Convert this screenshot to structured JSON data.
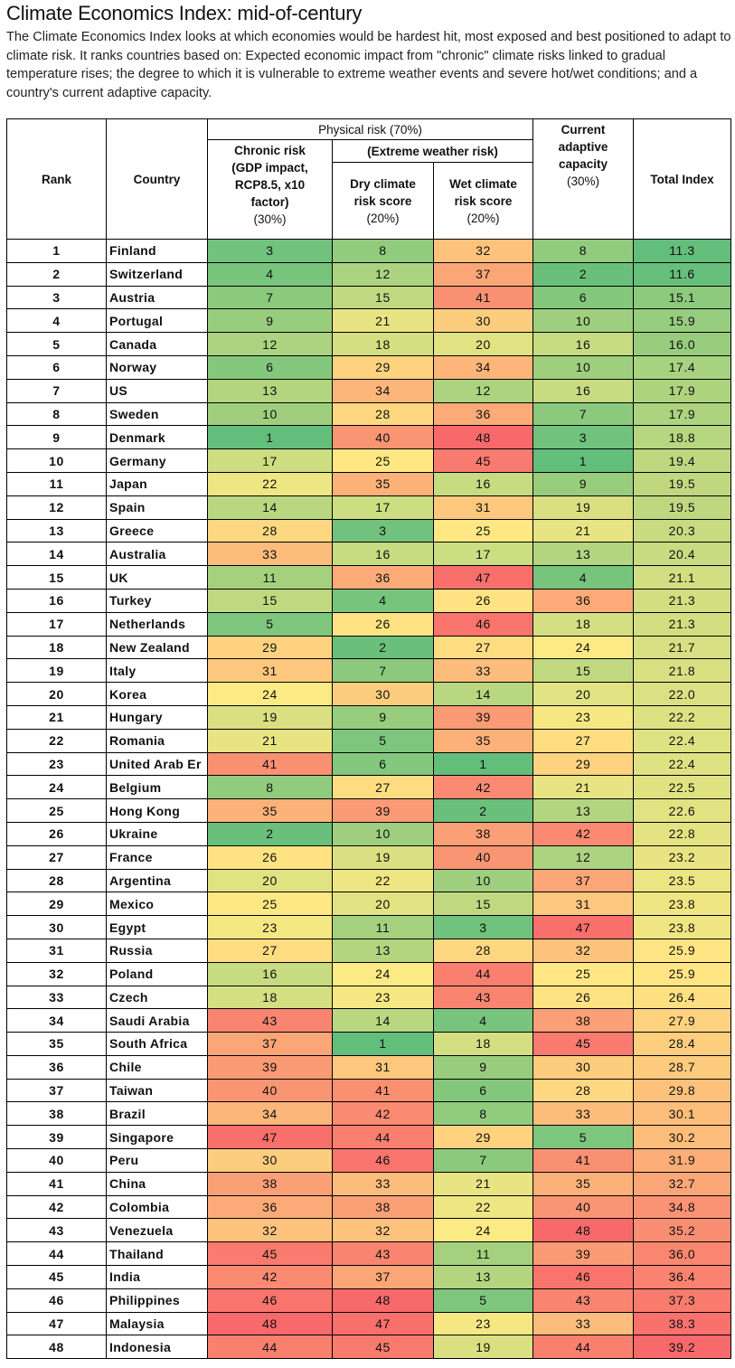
{
  "title": "Climate Economics Index: mid-of-century",
  "description": "The Climate Economics Index looks at which economies would be hardest hit, most exposed and best positioned to adapt to climate risk. It ranks countries based on: Expected economic impact from \"chronic\" climate risks linked to gradual temperature rises; the degree to which it is vulnerable to extreme weather events and severe hot/wet conditions; and a country's current adaptive capacity.",
  "headers": {
    "rank": "Rank",
    "country": "Country",
    "physical_risk": "Physical risk (70%)",
    "extreme_weather": "(Extreme weather risk)",
    "chronic_title": "Chronic risk",
    "chronic_detail": "(GDP impact, RCP8.5, x10 factor)",
    "chronic_pct": "(30%)",
    "dry_title": "Dry climate risk score",
    "dry_pct": "(20%)",
    "wet_title": "Wet climate risk score",
    "wet_pct": "(20%)",
    "adaptive_title": "Current adaptive capacity",
    "adaptive_pct": "(30%)",
    "total": "Total Index"
  },
  "colors": {
    "low": "#63be7b",
    "mid": "#ffeb84",
    "high": "#f8696b"
  },
  "chart_data": {
    "type": "table",
    "columns": [
      "Rank",
      "Country",
      "Chronic risk",
      "Dry climate risk score",
      "Wet climate risk score",
      "Current adaptive capacity",
      "Total Index"
    ],
    "rows": [
      {
        "rank": "1",
        "country": "Finland",
        "chronic": 3,
        "dry": 8,
        "wet": 32,
        "adaptive": 8,
        "total": "11.3"
      },
      {
        "rank": "2",
        "country": "Switzerland",
        "chronic": 4,
        "dry": 12,
        "wet": 37,
        "adaptive": 2,
        "total": "11.6"
      },
      {
        "rank": "3",
        "country": "Austria",
        "chronic": 7,
        "dry": 15,
        "wet": 41,
        "adaptive": 6,
        "total": "15.1"
      },
      {
        "rank": "4",
        "country": "Portugal",
        "chronic": 9,
        "dry": 21,
        "wet": 30,
        "adaptive": 10,
        "total": "15.9"
      },
      {
        "rank": "5",
        "country": "Canada",
        "chronic": 12,
        "dry": 18,
        "wet": 20,
        "adaptive": 16,
        "total": "16.0"
      },
      {
        "rank": "6",
        "country": "Norway",
        "chronic": 6,
        "dry": 29,
        "wet": 34,
        "adaptive": 10,
        "total": "17.4"
      },
      {
        "rank": "7",
        "country": "US",
        "chronic": 13,
        "dry": 34,
        "wet": 12,
        "adaptive": 16,
        "total": "17.9"
      },
      {
        "rank": "8",
        "country": "Sweden",
        "chronic": 10,
        "dry": 28,
        "wet": 36,
        "adaptive": 7,
        "total": "17.9"
      },
      {
        "rank": "9",
        "country": "Denmark",
        "chronic": 1,
        "dry": 40,
        "wet": 48,
        "adaptive": 3,
        "total": "18.8"
      },
      {
        "rank": "10",
        "country": "Germany",
        "chronic": 17,
        "dry": 25,
        "wet": 45,
        "adaptive": 1,
        "total": "19.4"
      },
      {
        "rank": "11",
        "country": "Japan",
        "chronic": 22,
        "dry": 35,
        "wet": 16,
        "adaptive": 9,
        "total": "19.5"
      },
      {
        "rank": "12",
        "country": "Spain",
        "chronic": 14,
        "dry": 17,
        "wet": 31,
        "adaptive": 19,
        "total": "19.5"
      },
      {
        "rank": "13",
        "country": "Greece",
        "chronic": 28,
        "dry": 3,
        "wet": 25,
        "adaptive": 21,
        "total": "20.3"
      },
      {
        "rank": "14",
        "country": "Australia",
        "chronic": 33,
        "dry": 16,
        "wet": 17,
        "adaptive": 13,
        "total": "20.4"
      },
      {
        "rank": "15",
        "country": "UK",
        "chronic": 11,
        "dry": 36,
        "wet": 47,
        "adaptive": 4,
        "total": "21.1"
      },
      {
        "rank": "16",
        "country": "Turkey",
        "chronic": 15,
        "dry": 4,
        "wet": 26,
        "adaptive": 36,
        "total": "21.3"
      },
      {
        "rank": "17",
        "country": "Netherlands",
        "chronic": 5,
        "dry": 26,
        "wet": 46,
        "adaptive": 18,
        "total": "21.3"
      },
      {
        "rank": "18",
        "country": "New Zealand",
        "chronic": 29,
        "dry": 2,
        "wet": 27,
        "adaptive": 24,
        "total": "21.7"
      },
      {
        "rank": "19",
        "country": "Italy",
        "chronic": 31,
        "dry": 7,
        "wet": 33,
        "adaptive": 15,
        "total": "21.8"
      },
      {
        "rank": "20",
        "country": "Korea",
        "chronic": 24,
        "dry": 30,
        "wet": 14,
        "adaptive": 20,
        "total": "22.0"
      },
      {
        "rank": "21",
        "country": "Hungary",
        "chronic": 19,
        "dry": 9,
        "wet": 39,
        "adaptive": 23,
        "total": "22.2"
      },
      {
        "rank": "22",
        "country": "Romania",
        "chronic": 21,
        "dry": 5,
        "wet": 35,
        "adaptive": 27,
        "total": "22.4"
      },
      {
        "rank": "23",
        "country": "United Arab Er",
        "chronic": 41,
        "dry": 6,
        "wet": 1,
        "adaptive": 29,
        "total": "22.4"
      },
      {
        "rank": "24",
        "country": "Belgium",
        "chronic": 8,
        "dry": 27,
        "wet": 42,
        "adaptive": 21,
        "total": "22.5"
      },
      {
        "rank": "25",
        "country": "Hong Kong",
        "chronic": 35,
        "dry": 39,
        "wet": 2,
        "adaptive": 13,
        "total": "22.6"
      },
      {
        "rank": "26",
        "country": "Ukraine",
        "chronic": 2,
        "dry": 10,
        "wet": 38,
        "adaptive": 42,
        "total": "22.8"
      },
      {
        "rank": "27",
        "country": "France",
        "chronic": 26,
        "dry": 19,
        "wet": 40,
        "adaptive": 12,
        "total": "23.2"
      },
      {
        "rank": "28",
        "country": "Argentina",
        "chronic": 20,
        "dry": 22,
        "wet": 10,
        "adaptive": 37,
        "total": "23.5"
      },
      {
        "rank": "29",
        "country": "Mexico",
        "chronic": 25,
        "dry": 20,
        "wet": 15,
        "adaptive": 31,
        "total": "23.8"
      },
      {
        "rank": "30",
        "country": "Egypt",
        "chronic": 23,
        "dry": 11,
        "wet": 3,
        "adaptive": 47,
        "total": "23.8"
      },
      {
        "rank": "31",
        "country": "Russia",
        "chronic": 27,
        "dry": 13,
        "wet": 28,
        "adaptive": 32,
        "total": "25.9"
      },
      {
        "rank": "32",
        "country": "Poland",
        "chronic": 16,
        "dry": 24,
        "wet": 44,
        "adaptive": 25,
        "total": "25.9"
      },
      {
        "rank": "33",
        "country": "Czech",
        "chronic": 18,
        "dry": 23,
        "wet": 43,
        "adaptive": 26,
        "total": "26.4"
      },
      {
        "rank": "34",
        "country": "Saudi Arabia",
        "chronic": 43,
        "dry": 14,
        "wet": 4,
        "adaptive": 38,
        "total": "27.9"
      },
      {
        "rank": "35",
        "country": "South Africa",
        "chronic": 37,
        "dry": 1,
        "wet": 18,
        "adaptive": 45,
        "total": "28.4"
      },
      {
        "rank": "36",
        "country": "Chile",
        "chronic": 39,
        "dry": 31,
        "wet": 9,
        "adaptive": 30,
        "total": "28.7"
      },
      {
        "rank": "37",
        "country": "Taiwan",
        "chronic": 40,
        "dry": 41,
        "wet": 6,
        "adaptive": 28,
        "total": "29.8"
      },
      {
        "rank": "38",
        "country": "Brazil",
        "chronic": 34,
        "dry": 42,
        "wet": 8,
        "adaptive": 33,
        "total": "30.1"
      },
      {
        "rank": "39",
        "country": "Singapore",
        "chronic": 47,
        "dry": 44,
        "wet": 29,
        "adaptive": 5,
        "total": "30.2"
      },
      {
        "rank": "40",
        "country": "Peru",
        "chronic": 30,
        "dry": 46,
        "wet": 7,
        "adaptive": 41,
        "total": "31.9"
      },
      {
        "rank": "41",
        "country": "China",
        "chronic": 38,
        "dry": 33,
        "wet": 21,
        "adaptive": 35,
        "total": "32.7"
      },
      {
        "rank": "42",
        "country": "Colombia",
        "chronic": 36,
        "dry": 38,
        "wet": 22,
        "adaptive": 40,
        "total": "34.8"
      },
      {
        "rank": "43",
        "country": "Venezuela",
        "chronic": 32,
        "dry": 32,
        "wet": 24,
        "adaptive": 48,
        "total": "35.2"
      },
      {
        "rank": "44",
        "country": "Thailand",
        "chronic": 45,
        "dry": 43,
        "wet": 11,
        "adaptive": 39,
        "total": "36.0"
      },
      {
        "rank": "45",
        "country": "India",
        "chronic": 42,
        "dry": 37,
        "wet": 13,
        "adaptive": 46,
        "total": "36.4"
      },
      {
        "rank": "46",
        "country": "Philippines",
        "chronic": 46,
        "dry": 48,
        "wet": 5,
        "adaptive": 43,
        "total": "37.3"
      },
      {
        "rank": "47",
        "country": "Malaysia",
        "chronic": 48,
        "dry": 47,
        "wet": 23,
        "adaptive": 33,
        "total": "38.3"
      },
      {
        "rank": "48",
        "country": "Indonesia",
        "chronic": 44,
        "dry": 45,
        "wet": 19,
        "adaptive": 44,
        "total": "39.2"
      }
    ]
  }
}
